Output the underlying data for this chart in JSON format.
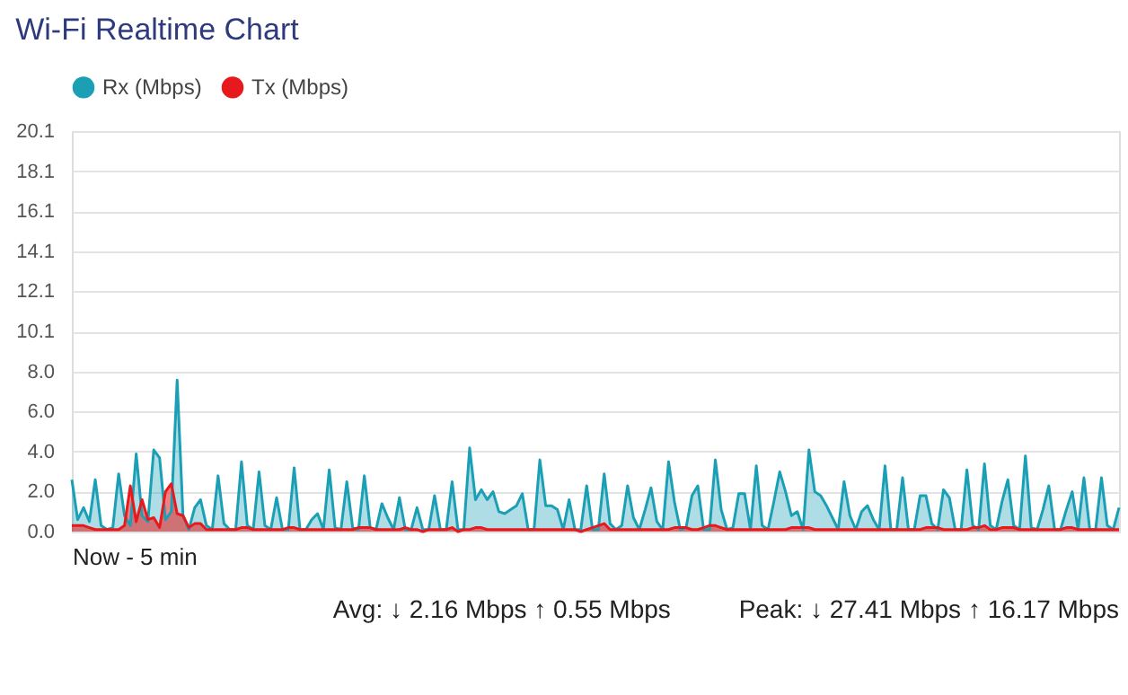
{
  "chart_data": {
    "type": "area",
    "title": "Wi-Fi Realtime Chart",
    "xlabel": "Now - 5 min",
    "tick_labels": "y",
    "categories": [
      null,
      null,
      null,
      null,
      null,
      null,
      null,
      null,
      null,
      null,
      null,
      null,
      null,
      null,
      null,
      null,
      null,
      null,
      null,
      null,
      null,
      null,
      null,
      null,
      null,
      null,
      null,
      null,
      null,
      null,
      null,
      null,
      null,
      null,
      null,
      null,
      null,
      null,
      null,
      null,
      null,
      null,
      null,
      null,
      null,
      null,
      null,
      null,
      null,
      null,
      null,
      null,
      null,
      null,
      null,
      null,
      null,
      null,
      null,
      null,
      null,
      null,
      null,
      null,
      null,
      null,
      null,
      null,
      null,
      null,
      null,
      null,
      null,
      null,
      null,
      null,
      null,
      null,
      null,
      null,
      null,
      null,
      null,
      null,
      null,
      null,
      null,
      null,
      null,
      null,
      null,
      null,
      null,
      null,
      null,
      null,
      null,
      null,
      null,
      null,
      null,
      null,
      null,
      null,
      null,
      null,
      null,
      null,
      null,
      null,
      null,
      null,
      null,
      null,
      null,
      null,
      null,
      null,
      null,
      null,
      null,
      null,
      null,
      null,
      null,
      null,
      null,
      null,
      null,
      null,
      null,
      null,
      null,
      null,
      null,
      null,
      null,
      null,
      null,
      null,
      null,
      null,
      null,
      null,
      null,
      null,
      null,
      null,
      null,
      null,
      null,
      null,
      null,
      null,
      null,
      null,
      null,
      null,
      null,
      null,
      null,
      null,
      null,
      null,
      null,
      null,
      null,
      null,
      null,
      null,
      null,
      null,
      null,
      null,
      null,
      null,
      null,
      null,
      null,
      null
    ],
    "ylim": [
      0,
      20.1
    ],
    "yticks": [
      {
        "value": 0,
        "label": "0.0"
      },
      {
        "value": 2.01,
        "label": "2.0"
      },
      {
        "value": 4.02,
        "label": "4.0"
      },
      {
        "value": 6.03,
        "label": "6.0"
      },
      {
        "value": 8.04,
        "label": "8.0"
      },
      {
        "value": 10.05,
        "label": "10.1"
      },
      {
        "value": 12.06,
        "label": "12.1"
      },
      {
        "value": 14.07,
        "label": "14.1"
      },
      {
        "value": 16.08,
        "label": "16.1"
      },
      {
        "value": 18.09,
        "label": "18.1"
      },
      {
        "value": 20.1,
        "label": "20.1"
      }
    ],
    "grid": "y",
    "legend": "top",
    "marker": "none",
    "series": [
      {
        "name": "Rx (Mbps)",
        "color": "#1a9fb5",
        "values": [
          2.6,
          0.6,
          1.2,
          0.5,
          2.6,
          0.3,
          0.1,
          0.2,
          2.9,
          0.8,
          0.3,
          3.9,
          0.8,
          0.5,
          4.1,
          3.7,
          0.6,
          1.0,
          7.6,
          0.8,
          0.1,
          1.2,
          1.6,
          0.3,
          0.1,
          2.8,
          0.4,
          0.1,
          0.1,
          3.5,
          0.3,
          0.1,
          3.0,
          0.3,
          0.1,
          1.7,
          0.1,
          0.1,
          3.2,
          0.1,
          0.1,
          0.6,
          0.9,
          0.1,
          3.1,
          0.2,
          0.1,
          2.5,
          0.2,
          0.1,
          2.8,
          0.2,
          0.1,
          1.4,
          0.7,
          0.1,
          1.7,
          0.1,
          0.1,
          1.2,
          0.1,
          0.1,
          1.8,
          0.1,
          0.1,
          2.5,
          0.1,
          0.1,
          4.2,
          1.6,
          2.1,
          1.6,
          2.0,
          1.0,
          0.9,
          1.1,
          1.3,
          1.9,
          0.1,
          0.1,
          3.6,
          1.3,
          1.3,
          1.1,
          0.1,
          1.6,
          0.1,
          0.1,
          2.3,
          0.1,
          0.1,
          2.9,
          0.4,
          0.1,
          0.3,
          2.3,
          0.7,
          0.1,
          1.1,
          2.2,
          0.5,
          0.1,
          3.5,
          1.5,
          0.1,
          0.2,
          1.8,
          2.3,
          0.1,
          0.1,
          3.6,
          1.1,
          0.1,
          0.2,
          1.9,
          1.9,
          0.1,
          3.3,
          0.3,
          0.1,
          1.5,
          3.0,
          2.0,
          0.8,
          1.0,
          0.1,
          4.1,
          2.0,
          1.8,
          1.3,
          0.7,
          0.1,
          2.5,
          0.8,
          0.1,
          1.0,
          1.3,
          0.6,
          0.1,
          3.3,
          0.1,
          0.1,
          2.7,
          0.1,
          0.1,
          1.8,
          1.8,
          0.4,
          0.1,
          2.1,
          1.7,
          0.1,
          0.1,
          3.1,
          0.3,
          0.1,
          3.4,
          0.3,
          0.1,
          1.5,
          2.6,
          0.3,
          0.1,
          3.8,
          0.2,
          0.1,
          1.1,
          2.3,
          0.1,
          0.1,
          1.1,
          2.0,
          0.1,
          2.7,
          0.1,
          0.1,
          2.7,
          0.3,
          0.1,
          1.2
        ]
      },
      {
        "name": "Tx (Mbps)",
        "color": "#e8191c",
        "values": [
          0.3,
          0.3,
          0.3,
          0.2,
          0.1,
          0.1,
          0.1,
          0.1,
          0.1,
          0.3,
          2.3,
          0.5,
          1.6,
          0.6,
          0.7,
          0.2,
          2.0,
          2.4,
          0.9,
          0.8,
          0.2,
          0.4,
          0.4,
          0.1,
          0.1,
          0.1,
          0.1,
          0.1,
          0.1,
          0.2,
          0.2,
          0.1,
          0.1,
          0.1,
          0.1,
          0.1,
          0.1,
          0.2,
          0.2,
          0.1,
          0.1,
          0.1,
          0.1,
          0.1,
          0.1,
          0.1,
          0.1,
          0.1,
          0.1,
          0.2,
          0.2,
          0.2,
          0.1,
          0.1,
          0.1,
          0.1,
          0.1,
          0.2,
          0.1,
          0.1,
          0.0,
          0.1,
          0.1,
          0.1,
          0.1,
          0.2,
          0.0,
          0.1,
          0.1,
          0.2,
          0.2,
          0.1,
          0.1,
          0.1,
          0.1,
          0.1,
          0.1,
          0.1,
          0.1,
          0.1,
          0.1,
          0.1,
          0.1,
          0.1,
          0.1,
          0.1,
          0.1,
          0.0,
          0.1,
          0.2,
          0.3,
          0.4,
          0.1,
          0.1,
          0.1,
          0.1,
          0.1,
          0.1,
          0.1,
          0.1,
          0.1,
          0.1,
          0.1,
          0.2,
          0.2,
          0.2,
          0.1,
          0.1,
          0.2,
          0.3,
          0.3,
          0.2,
          0.1,
          0.1,
          0.1,
          0.1,
          0.1,
          0.1,
          0.1,
          0.1,
          0.1,
          0.1,
          0.1,
          0.2,
          0.2,
          0.2,
          0.2,
          0.1,
          0.1,
          0.1,
          0.1,
          0.1,
          0.1,
          0.1,
          0.1,
          0.1,
          0.1,
          0.1,
          0.1,
          0.1,
          0.1,
          0.1,
          0.1,
          0.1,
          0.1,
          0.1,
          0.2,
          0.2,
          0.2,
          0.1,
          0.1,
          0.1,
          0.1,
          0.1,
          0.2,
          0.2,
          0.3,
          0.1,
          0.1,
          0.2,
          0.2,
          0.2,
          0.1,
          0.1,
          0.1,
          0.1,
          0.1,
          0.1,
          0.1,
          0.1,
          0.2,
          0.2,
          0.1,
          0.1,
          0.1,
          0.1,
          0.1,
          0.1,
          0.1,
          0.1
        ]
      }
    ],
    "annotations": [
      "Avg: ↓ 2.16 Mbps ↑ 0.55 Mbps",
      "Peak: ↓ 27.41 Mbps ↑ 16.17 Mbps"
    ]
  }
}
